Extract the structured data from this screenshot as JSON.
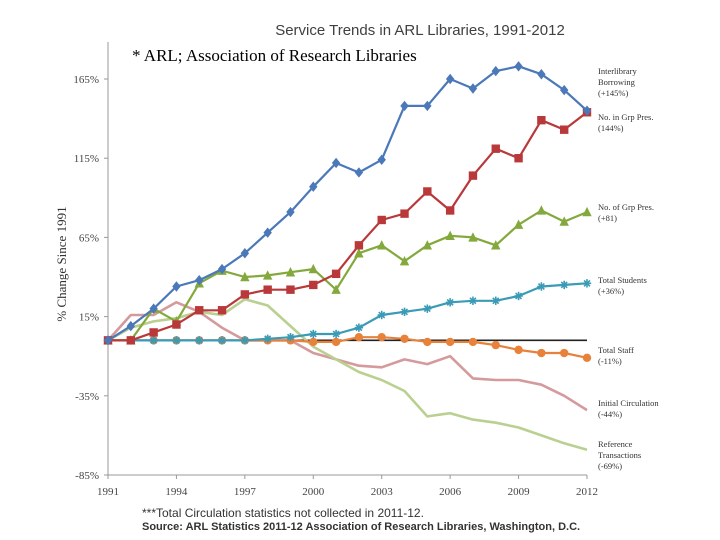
{
  "chart_data": {
    "type": "line",
    "title": "Service Trends in ARL Libraries, 1991-2012",
    "caption": "* ARL; Association of Research Libraries",
    "ylabel": "% Change Since 1991",
    "xlabel": "",
    "ylim": [
      -85,
      165
    ],
    "y_ticks": [
      "165%",
      "115%",
      "65%",
      "15%",
      "-35%",
      "-85%"
    ],
    "y_tick_values": [
      165,
      115,
      65,
      15,
      -35,
      -85
    ],
    "x_ticks": [
      "1991",
      "1994",
      "1997",
      "2000",
      "2003",
      "2006",
      "2009",
      "2012"
    ],
    "x_tick_values": [
      1991,
      1994,
      1997,
      2000,
      2003,
      2006,
      2009,
      2012
    ],
    "x": [
      1991,
      1992,
      1993,
      1994,
      1995,
      1996,
      1997,
      1998,
      1999,
      2000,
      2001,
      2002,
      2003,
      2004,
      2005,
      2006,
      2007,
      2008,
      2009,
      2010,
      2011,
      2012
    ],
    "series": [
      {
        "name": "Interlibrary Borrowing",
        "legend": [
          "Interlibrary",
          "Borrowing",
          "(+145%)"
        ],
        "color": "#4a78b8",
        "marker": "diamond",
        "values": [
          0,
          9,
          20,
          34,
          38,
          45,
          55,
          68,
          81,
          97,
          112,
          106,
          114,
          148,
          148,
          165,
          159,
          170,
          173,
          168,
          158,
          145
        ]
      },
      {
        "name": "No. in Grp Pres.",
        "legend": [
          "No. in Grp Pres.",
          "(144%)"
        ],
        "color": "#b9393a",
        "marker": "square",
        "values": [
          0,
          0,
          5,
          10,
          19,
          19,
          29,
          32,
          32,
          35,
          42,
          60,
          76,
          80,
          94,
          82,
          104,
          121,
          115,
          139,
          133,
          144
        ]
      },
      {
        "name": "No. of Grp Pres.",
        "legend": [
          "No. of Grp Pres.",
          "(+81)"
        ],
        "color": "#83a93c",
        "marker": "triangle",
        "values": [
          0,
          0,
          20,
          12,
          36,
          44,
          40,
          41,
          43,
          45,
          32,
          55,
          60,
          50,
          60,
          66,
          65,
          60,
          73,
          82,
          75,
          81
        ]
      },
      {
        "name": "Total Students",
        "legend": [
          "Total Students",
          "(+36%)"
        ],
        "color": "#3a9bb6",
        "marker": "star",
        "values": [
          0,
          0,
          0,
          0,
          0,
          0,
          0,
          1,
          2,
          4,
          4,
          8,
          16,
          18,
          20,
          24,
          25,
          25,
          28,
          34,
          35,
          36
        ]
      },
      {
        "name": "Total Staff",
        "legend": [
          "Total Staff",
          "(-11%)"
        ],
        "color": "#e8823a",
        "marker": "circle",
        "values": [
          0,
          0,
          0,
          0,
          0,
          0,
          0,
          0,
          0,
          -1,
          -1,
          2,
          2,
          1,
          -1,
          -1,
          -1,
          -3,
          -6,
          -8,
          -8,
          -11
        ]
      },
      {
        "name": "Initial Circulation",
        "legend": [
          "Initial Circulation",
          "(-44%)"
        ],
        "color": "#d49a9c",
        "marker": "none",
        "values": [
          0,
          16,
          16,
          24,
          18,
          8,
          0,
          0,
          0,
          -8,
          -12,
          -16,
          -17,
          -12,
          -15,
          -10,
          -24,
          -25,
          -25,
          -28,
          -35,
          -44
        ]
      },
      {
        "name": "Reference Transactions",
        "legend": [
          "Reference",
          "Transactions",
          "(-69%)"
        ],
        "color": "#b9d091",
        "marker": "none",
        "values": [
          0,
          8,
          12,
          14,
          18,
          16,
          26,
          22,
          9,
          -4,
          -12,
          -20,
          -25,
          -32,
          -48,
          -46,
          -50,
          -52,
          -55,
          -60,
          -65,
          -69
        ]
      }
    ],
    "footnote": "***Total Circulation statistics not collected in 2011-12.",
    "source": "Source: ARL Statistics 2011-12 Association of Research Libraries, Washington, D.C."
  }
}
